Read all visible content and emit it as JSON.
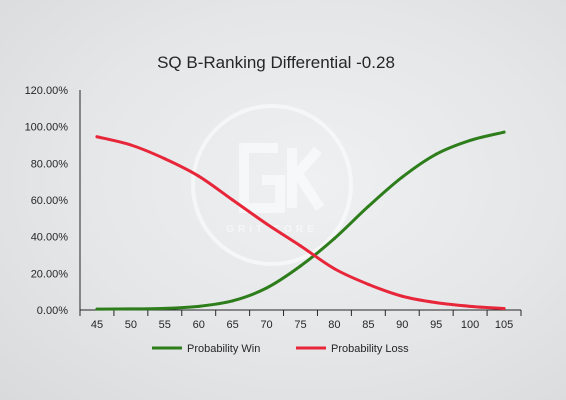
{
  "chart_data": {
    "type": "line",
    "title": "SQ B-Ranking Differential -0.28",
    "x": [
      45,
      50,
      55,
      60,
      65,
      70,
      75,
      80,
      85,
      90,
      95,
      100,
      105
    ],
    "y_ticks": [
      "0.00%",
      "20.00%",
      "40.00%",
      "60.00%",
      "80.00%",
      "100.00%",
      "120.00%"
    ],
    "ylim": [
      0,
      120
    ],
    "grid": false,
    "legend_position": "bottom",
    "series": [
      {
        "name": "Probability Win",
        "color": "#2e7d1b",
        "values": [
          0.5,
          0.6,
          0.9,
          2.0,
          5.0,
          12.0,
          24.0,
          39.0,
          56.5,
          72.5,
          85.0,
          92.5,
          97.0
        ]
      },
      {
        "name": "Probability Loss",
        "color": "#e8263a",
        "values": [
          94.5,
          90.0,
          82.5,
          73.0,
          60.0,
          47.0,
          35.0,
          22.5,
          14.0,
          7.5,
          4.0,
          2.0,
          0.8
        ]
      }
    ],
    "watermark": {
      "letters": "GK",
      "text": "GRIT CORE"
    }
  }
}
